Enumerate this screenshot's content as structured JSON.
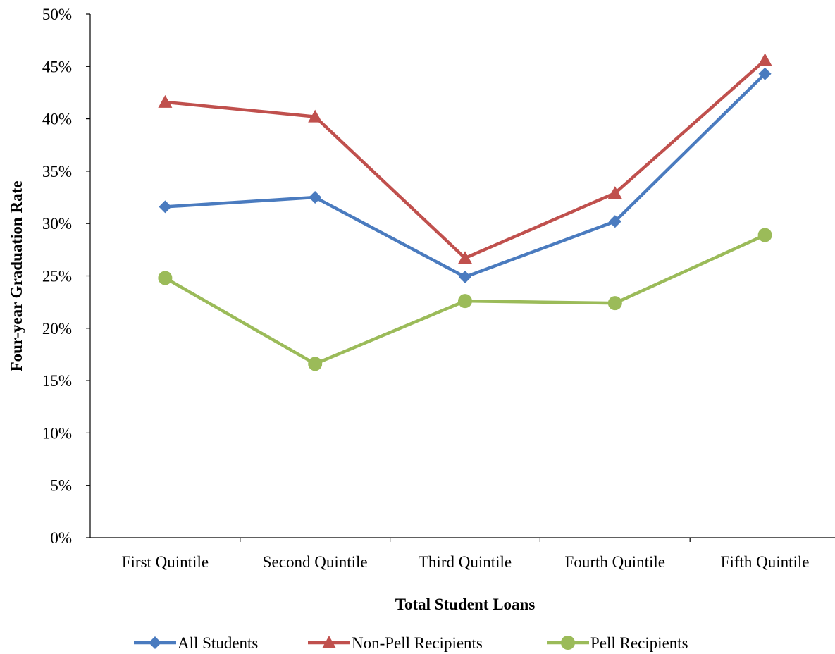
{
  "chart_data": {
    "type": "line",
    "categories": [
      "First Quintile",
      "Second Quintile",
      "Third Quintile",
      "Fourth Quintile",
      "Fifth Quintile"
    ],
    "series": [
      {
        "name": "All Students",
        "values": [
          31.6,
          32.5,
          24.9,
          30.2,
          44.3
        ],
        "color": "#4a7bbf",
        "marker": "diamond"
      },
      {
        "name": "Non-Pell Recipients",
        "values": [
          41.6,
          40.2,
          26.7,
          32.9,
          45.6
        ],
        "color": "#c0504d",
        "marker": "triangle"
      },
      {
        "name": "Pell Recipients",
        "values": [
          24.8,
          16.6,
          22.6,
          22.4,
          28.9
        ],
        "color": "#9bbb59",
        "marker": "circle"
      }
    ],
    "y_ticks": [
      "0%",
      "5%",
      "10%",
      "15%",
      "20%",
      "25%",
      "30%",
      "35%",
      "40%",
      "45%",
      "50%"
    ],
    "ylim": [
      0,
      50
    ],
    "xlabel": "Total Student Loans",
    "ylabel": "Four-year Graduation Rate",
    "grid": false,
    "legend_position": "bottom"
  }
}
